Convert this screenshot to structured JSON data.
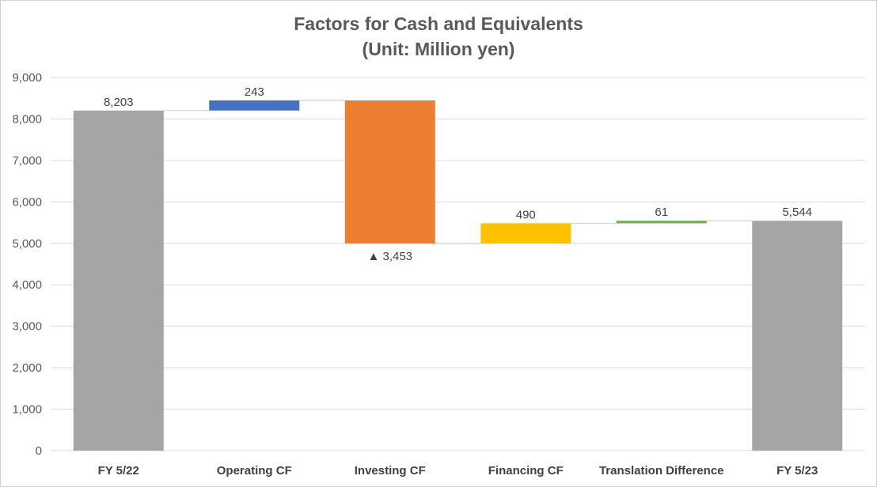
{
  "chart_data": {
    "type": "waterfall",
    "title_line1": "Factors for Cash and Equivalents",
    "title_line2": "(Unit: Million yen)",
    "categories": [
      "FY 5/22",
      "Operating CF",
      "Investing CF",
      "Financing CF",
      "Translation Difference",
      "FY 5/23"
    ],
    "bars": [
      {
        "category": "FY 5/22",
        "kind": "total",
        "value": 8203,
        "label": "8,203",
        "color": "#a5a5a5"
      },
      {
        "category": "Operating CF",
        "kind": "increase",
        "value": 243,
        "label": "243",
        "color": "#4472c4"
      },
      {
        "category": "Investing CF",
        "kind": "decrease",
        "value": -3453,
        "label": "▲ 3,453",
        "color": "#ed7d31"
      },
      {
        "category": "Financing CF",
        "kind": "increase",
        "value": 490,
        "label": "490",
        "color": "#ffc000"
      },
      {
        "category": "Translation Difference",
        "kind": "increase",
        "value": 61,
        "label": "61",
        "color": "#70ad47"
      },
      {
        "category": "FY 5/23",
        "kind": "total",
        "value": 5544,
        "label": "5,544",
        "color": "#a5a5a5"
      }
    ],
    "y_ticks": [
      0,
      1000,
      2000,
      3000,
      4000,
      5000,
      6000,
      7000,
      8000,
      9000
    ],
    "y_tick_labels": [
      "0",
      "1,000",
      "2,000",
      "3,000",
      "4,000",
      "5,000",
      "6,000",
      "7,000",
      "8,000",
      "9,000"
    ],
    "ylim": [
      0,
      9000
    ],
    "grid": true,
    "legend": "none",
    "connector_color": "#d9d9d9",
    "gridline_color": "#d9d9d9"
  }
}
